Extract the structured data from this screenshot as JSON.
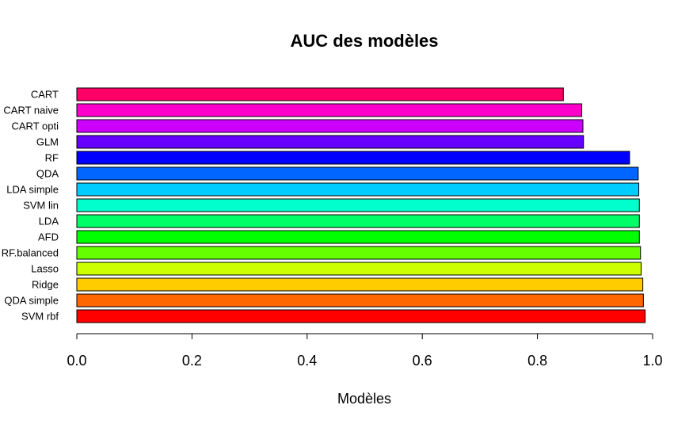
{
  "chart_data": {
    "type": "bar",
    "orientation": "horizontal",
    "title": "AUC des modèles",
    "xlabel": "Modèles",
    "ylabel": "",
    "xlim": [
      0,
      1
    ],
    "x_ticks": [
      "0.0",
      "0.2",
      "0.4",
      "0.6",
      "0.8",
      "1.0"
    ],
    "grid": false,
    "legend": "none",
    "categories": [
      "CART",
      "CART naive",
      "CART opti",
      "GLM",
      "RF",
      "QDA",
      "LDA simple",
      "SVM lin",
      "LDA",
      "AFD",
      "RF.balanced",
      "Lasso",
      "Ridge",
      "QDA simple",
      "SVM rbf"
    ],
    "values": [
      0.845,
      0.877,
      0.879,
      0.88,
      0.96,
      0.975,
      0.976,
      0.977,
      0.977,
      0.977,
      0.979,
      0.98,
      0.983,
      0.984,
      0.987
    ],
    "colors": [
      "#FF0066",
      "#FF00CC",
      "#CC00FF",
      "#6600FF",
      "#0000FF",
      "#0066FF",
      "#00CCFF",
      "#00FFCC",
      "#00FF66",
      "#00FF00",
      "#66FF00",
      "#CCFF00",
      "#FFCC00",
      "#FF6600",
      "#FF0000"
    ]
  }
}
